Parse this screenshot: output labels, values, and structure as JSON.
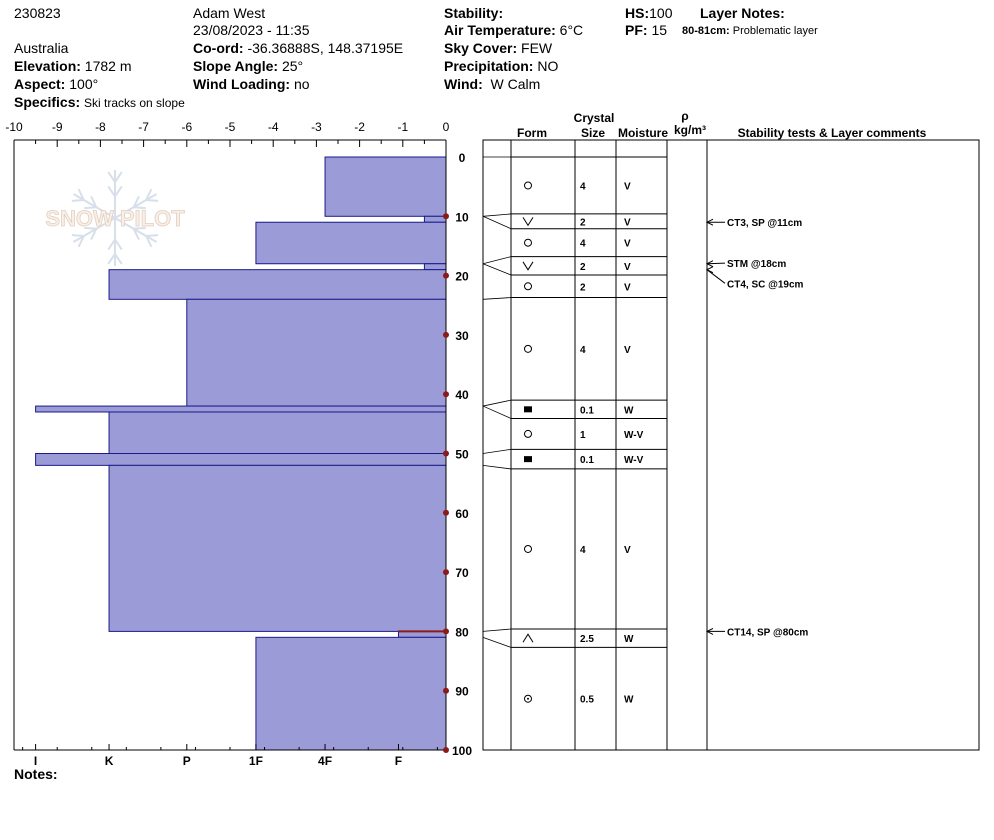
{
  "header": {
    "id": "230823",
    "observer": "Adam West",
    "datetime": "23/08/2023 - 11:35",
    "country": "Australia",
    "elevation_label": "Elevation:",
    "elevation_value": "1782 m",
    "aspect_label": "Aspect:",
    "aspect_value": "100°",
    "specifics_label": "Specifics:",
    "specifics_value": "Ski tracks on slope",
    "coord_label": "Co-ord:",
    "coord_value": "-36.36888S, 148.37195E",
    "slope_label": "Slope Angle:",
    "slope_value": "25°",
    "wind_loading_label": "Wind Loading:",
    "wind_loading_value": "no",
    "stability_label": "Stability:",
    "stability_value": "",
    "air_temp_label": "Air Temperature:",
    "air_temp_value": "6°C",
    "sky_label": "Sky Cover:",
    "sky_value": "FEW",
    "precip_label": "Precipitation:",
    "precip_value": "NO",
    "wind_label": "Wind:",
    "wind_value": "W Calm",
    "hs_label": "HS:",
    "hs_value": "100",
    "pf_label": "PF:",
    "pf_value": "15",
    "layer_notes_label": "Layer Notes:",
    "layer_note_depth": "80-81cm:",
    "layer_note_text": "Problematic layer"
  },
  "notes_label": "Notes:",
  "watermark": "SNOW PILOT",
  "table_headers": {
    "crystal": "Crystal",
    "form": "Form",
    "size": "Size",
    "moisture": "Moisture",
    "rho": "ρ",
    "density_unit": "kg/m³",
    "comments": "Stability tests & Layer comments"
  },
  "colors": {
    "bar_fill": "#9b9bd7",
    "bar_stroke": "#1a1a8c",
    "marker": "#8b1a1a"
  },
  "chart_data": {
    "type": "bar",
    "orientation": "horizontal",
    "title": "",
    "top_axis": {
      "range": [
        -10,
        0
      ],
      "ticks": [
        "-10",
        "-9",
        "-8",
        "-7",
        "-6",
        "-5",
        "-4",
        "-3",
        "-2",
        "-1",
        "0"
      ]
    },
    "bottom_axis": {
      "labels": [
        "I",
        "K",
        "P",
        "1F",
        "4F",
        "F"
      ],
      "values": [
        -9.5,
        -7.8,
        -6,
        -4.4,
        -2.8,
        -1.1
      ]
    },
    "depth_axis": {
      "range": [
        0,
        100
      ],
      "ticks": [
        "0",
        "10",
        "20",
        "30",
        "40",
        "50",
        "60",
        "70",
        "80",
        "90",
        "100"
      ],
      "unit": "cm"
    },
    "layers": [
      {
        "top": 0,
        "bottom": 10,
        "hardness": -2.8
      },
      {
        "top": 10,
        "bottom": 11,
        "hardness": -0.5
      },
      {
        "top": 11,
        "bottom": 18,
        "hardness": -4.4
      },
      {
        "top": 18,
        "bottom": 19,
        "hardness": -0.5
      },
      {
        "top": 19,
        "bottom": 24,
        "hardness": -7.8
      },
      {
        "top": 24,
        "bottom": 42,
        "hardness": -6.0
      },
      {
        "top": 42,
        "bottom": 43,
        "hardness": -9.5
      },
      {
        "top": 43,
        "bottom": 50,
        "hardness": -7.8
      },
      {
        "top": 50,
        "bottom": 52,
        "hardness": -9.5
      },
      {
        "top": 52,
        "bottom": 80,
        "hardness": -7.8
      },
      {
        "top": 80,
        "bottom": 81,
        "hardness": -1.1
      },
      {
        "top": 81,
        "bottom": 100,
        "hardness": -4.4
      }
    ],
    "table_rows": [
      {
        "top": 0,
        "bottom": 9.6,
        "form": "circle",
        "size": "4",
        "moisture": "V"
      },
      {
        "top": 9.6,
        "bottom": 12.1,
        "form": "v",
        "size": "2",
        "moisture": "V"
      },
      {
        "top": 12.1,
        "bottom": 16.8,
        "form": "circle",
        "size": "4",
        "moisture": "V"
      },
      {
        "top": 16.8,
        "bottom": 19.9,
        "form": "v",
        "size": "2",
        "moisture": "V"
      },
      {
        "top": 19.9,
        "bottom": 23.7,
        "form": "circle",
        "size": "2",
        "moisture": "V"
      },
      {
        "top": 23.7,
        "bottom": 41.0,
        "form": "circle",
        "size": "4",
        "moisture": "V"
      },
      {
        "top": 41.0,
        "bottom": 44.1,
        "form": "square",
        "size": "0.1",
        "moisture": "W"
      },
      {
        "top": 44.1,
        "bottom": 49.3,
        "form": "circle",
        "size": "1",
        "moisture": "W-V"
      },
      {
        "top": 49.3,
        "bottom": 52.6,
        "form": "square",
        "size": "0.1",
        "moisture": "W-V"
      },
      {
        "top": 52.6,
        "bottom": 79.6,
        "form": "circle",
        "size": "4",
        "moisture": "V"
      },
      {
        "top": 79.6,
        "bottom": 82.7,
        "form": "caret",
        "size": "2.5",
        "moisture": "W"
      },
      {
        "top": 82.7,
        "bottom": 100,
        "form": "circle-dot",
        "size": "0.5",
        "moisture": "W"
      }
    ],
    "tests": [
      {
        "depth": 11,
        "label": "CT3, SP @11cm",
        "label_depth": 11
      },
      {
        "depth": 18,
        "label": "STM @18cm",
        "label_depth": 17.9
      },
      {
        "depth": 19,
        "label": "CT4, SC @19cm",
        "label_depth": 21.3
      },
      {
        "depth": 80,
        "label": "CT14, SP @80cm",
        "label_depth": 80
      }
    ]
  }
}
